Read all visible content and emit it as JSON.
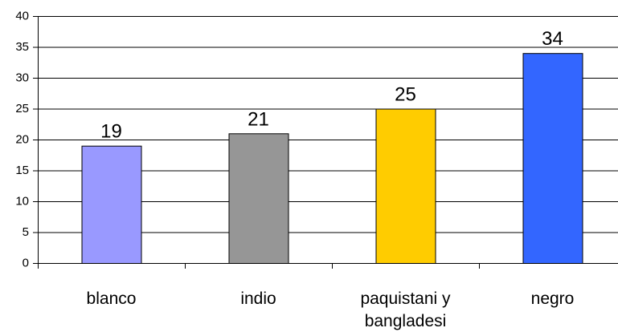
{
  "chart_data": {
    "type": "bar",
    "categories": [
      "blanco",
      "indio",
      "paquistani y bangladesi",
      "negro"
    ],
    "category_label_lines": [
      [
        "blanco"
      ],
      [
        "indio"
      ],
      [
        "paquistani y",
        "bangladesi"
      ],
      [
        "negro"
      ]
    ],
    "values": [
      19,
      21,
      25,
      34
    ],
    "data_labels": [
      "19",
      "21",
      "25",
      "34"
    ],
    "bar_colors": [
      "#9999ff",
      "#969696",
      "#ffcc00",
      "#3366ff"
    ],
    "title": "",
    "xlabel": "",
    "ylabel": "",
    "ylim": [
      0,
      40
    ],
    "yticks": [
      0,
      5,
      10,
      15,
      20,
      25,
      30,
      35,
      40
    ],
    "grid": true,
    "legend": "none"
  }
}
